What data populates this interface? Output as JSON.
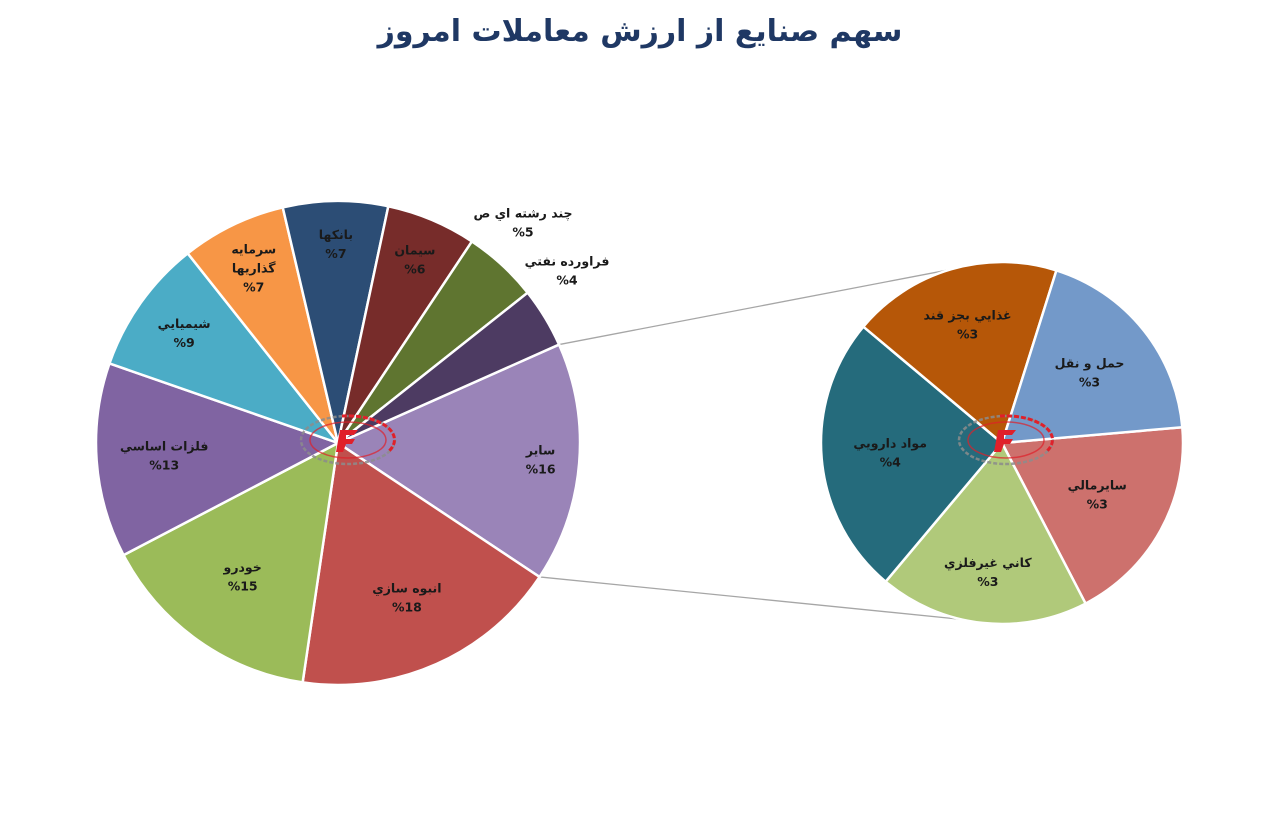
{
  "chart_data": [
    {
      "type": "pie",
      "title": "سهم صنايع از ارزش معاملات امروز",
      "unit": "%",
      "slices": [
        {
          "label": "ساير",
          "value": 16,
          "display": "16%",
          "color": "#9a84b8"
        },
        {
          "label": "انبوه سازي",
          "value": 18,
          "display": "18%",
          "color": "#c0504d"
        },
        {
          "label": "خودرو",
          "value": 15,
          "display": "15%",
          "color": "#9bbb59"
        },
        {
          "label": "فلزات اساسي",
          "value": 13,
          "display": "13%",
          "color": "#8064a2"
        },
        {
          "label": "شيميايي",
          "value": 9,
          "display": "9%",
          "color": "#4bacc6"
        },
        {
          "label": "سرمايه گذاريها",
          "label_lines": [
            "سرمايه",
            "گذاريها"
          ],
          "value": 7,
          "display": "7%",
          "color": "#f79646"
        },
        {
          "label": "بانكها",
          "value": 7,
          "display": "7%",
          "color": "#2c4d75"
        },
        {
          "label": "سيمان",
          "value": 6,
          "display": "6%",
          "color": "#772c2a"
        },
        {
          "label": "چند رشته اي ص",
          "value": 5,
          "display": "5%",
          "color": "#5f7530"
        },
        {
          "label": "فراورده نفتي",
          "value": 4,
          "display": "4%",
          "color": "#4d3b62"
        }
      ]
    },
    {
      "type": "pie",
      "breakout_of": "ساير",
      "unit": "%",
      "slices": [
        {
          "label": "سايرمالي",
          "value": 3,
          "display": "3%",
          "color": "#cd716d"
        },
        {
          "label": "كاني غيرفلزي",
          "value": 3,
          "display": "3%",
          "color": "#b0c97a"
        },
        {
          "label": "مواد دارويي",
          "value": 4,
          "display": "4%",
          "color": "#256b7c"
        },
        {
          "label": "غذايي بجز قند",
          "value": 3,
          "display": "3%",
          "color": "#b65708"
        },
        {
          "label": "حمل و نقل",
          "value": 3,
          "display": "3%",
          "color": "#7399c9"
        }
      ]
    }
  ],
  "colors": {
    "title": "#1f3864",
    "connector": "#a6a6a6",
    "slice_border": "#ffffff",
    "logo_red": "#e0202a",
    "logo_gray": "#8c8c8c"
  },
  "logo": {
    "name": "watermark-logo-icon"
  }
}
